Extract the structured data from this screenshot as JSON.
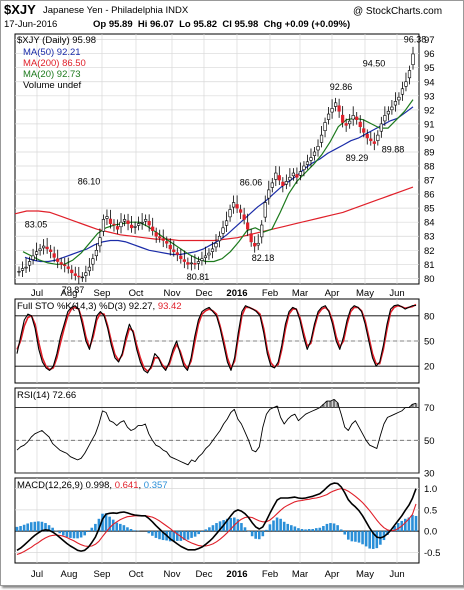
{
  "header": {
    "symbol": "$XJY",
    "title": "Japanese Yen - Philadelphia INDX",
    "watermark": "@ StockCharts.com",
    "date": "17-Jun-2016",
    "stats": "Op 95.89  Hi 96.07  Lo 95.82  Cl 95.98  Chg +0.09 (+0.09%)"
  },
  "colors": {
    "candle": "#000000",
    "ma50": "#1b2ca8",
    "ma200": "#e0202a",
    "ma20": "#1d7a1d",
    "stoK": "#000000",
    "stoD": "#e0202a",
    "rsi": "#000000",
    "macd": "#000000",
    "signal": "#e0202a",
    "hist": "#2a8fd8",
    "grid": "#d8d8d8"
  },
  "chart_data": [
    {
      "type": "candlestick",
      "legend": [
        "$XJY (Daily) 95.98",
        "MA(50) 92.21",
        "MA(200) 86.50",
        "MA(20) 92.73",
        "Volume undef"
      ],
      "ylim": [
        79.6,
        97.4
      ],
      "yticks": [
        80,
        81,
        82,
        83,
        84,
        85,
        86,
        87,
        88,
        89,
        90,
        91,
        92,
        93,
        94,
        95,
        96,
        97
      ],
      "xticks": [
        "Jul",
        "Aug",
        "Sep",
        "Oct",
        "Nov",
        "Dec",
        "2016",
        "Feb",
        "Mar",
        "Apr",
        "May",
        "Jun"
      ],
      "closes": [
        80.5,
        80.7,
        80.8,
        81.2,
        81.6,
        81.9,
        82.1,
        82.3,
        82.1,
        81.9,
        81.5,
        81.2,
        81.0,
        80.9,
        80.7,
        80.4,
        80.2,
        80.1,
        80.1,
        80.4,
        80.8,
        81.4,
        82.0,
        82.9,
        84.2,
        84.4,
        83.9,
        83.8,
        83.5,
        84.0,
        84.2,
        83.9,
        83.6,
        83.7,
        83.9,
        84.0,
        84.2,
        83.8,
        83.4,
        83.0,
        82.9,
        82.7,
        82.5,
        82.1,
        81.9,
        81.7,
        81.4,
        81.2,
        81.0,
        81.1,
        81.0,
        81.2,
        81.4,
        81.6,
        81.8,
        82.1,
        82.5,
        83.0,
        83.6,
        84.1,
        84.9,
        85.4,
        85.0,
        84.7,
        84.2,
        83.5,
        82.6,
        82.3,
        82.5,
        83.8,
        85.4,
        86.3,
        86.8,
        87.5,
        87.0,
        86.6,
        86.9,
        87.2,
        87.5,
        87.2,
        87.6,
        88.0,
        88.3,
        88.6,
        89.0,
        89.4,
        90.2,
        91.1,
        91.7,
        92.1,
        92.5,
        91.9,
        91.1,
        90.9,
        91.2,
        91.6,
        91.3,
        90.8,
        90.4,
        90.0,
        89.8,
        89.6,
        90.2,
        91.0,
        91.6,
        91.9,
        92.2,
        92.6,
        92.9,
        93.5,
        94.0,
        94.8,
        95.98
      ],
      "series": [
        {
          "name": "MA(50)",
          "values": [
            81.5,
            81.3,
            81.2,
            81.2,
            81.3,
            81.5,
            81.7,
            81.9,
            82.1,
            82.4,
            82.6,
            82.7,
            82.7,
            82.6,
            82.4,
            82.2,
            82.0,
            81.9,
            81.8,
            81.7,
            81.7,
            81.8,
            81.9,
            82.1,
            82.4,
            82.7,
            83.1,
            83.6,
            84.1,
            84.6,
            85.1,
            85.5,
            86.0,
            86.5,
            86.9,
            87.3,
            87.8,
            88.2,
            88.5,
            88.9,
            89.2,
            89.5,
            89.8,
            90.0,
            90.3,
            90.6,
            90.9,
            91.2,
            91.4,
            91.8,
            92.21
          ]
        },
        {
          "name": "MA(200)",
          "values": [
            84.6,
            84.8,
            84.8,
            84.7,
            84.4,
            84.1,
            83.8,
            83.5,
            83.3,
            83.1,
            83.0,
            82.9,
            82.8,
            82.8,
            82.7,
            82.7,
            82.7,
            82.7,
            82.8,
            82.9,
            83.1,
            83.3,
            83.5,
            83.7,
            83.9,
            84.1,
            84.3,
            84.5,
            84.7,
            85.0,
            85.3,
            85.6,
            85.9,
            86.2,
            86.5
          ]
        },
        {
          "name": "MA(20)",
          "values": [
            81.9,
            81.6,
            81.3,
            81.1,
            81.0,
            81.0,
            81.3,
            81.8,
            82.5,
            83.2,
            83.6,
            83.8,
            83.9,
            84.0,
            84.0,
            83.7,
            83.3,
            82.9,
            82.5,
            82.1,
            81.7,
            81.4,
            81.2,
            81.2,
            81.4,
            81.9,
            82.6,
            83.4,
            83.6,
            83.3,
            83.5,
            84.7,
            86.0,
            86.9,
            87.5,
            88.1,
            88.8,
            89.7,
            90.8,
            91.3,
            91.4,
            91.3,
            91.0,
            90.7,
            90.7,
            91.3,
            91.9,
            92.73
          ]
        }
      ],
      "annotations": [
        {
          "label": "83.05",
          "value": 83.05
        },
        {
          "label": "79.87",
          "value": 79.87
        },
        {
          "label": "86.10",
          "value": 86.1
        },
        {
          "label": "80.81",
          "value": 80.81
        },
        {
          "label": "86.06",
          "value": 86.06
        },
        {
          "label": "82.18",
          "value": 82.18
        },
        {
          "label": "92.86",
          "value": 92.86
        },
        {
          "label": "94.50",
          "value": 94.5
        },
        {
          "label": "89.29",
          "value": 89.29
        },
        {
          "label": "89.88",
          "value": 89.88
        },
        {
          "label": "96.38",
          "value": 96.38
        }
      ]
    },
    {
      "type": "line",
      "legend": [
        "Full STO %K(14,3) %D(3) 92.27, 93.42"
      ],
      "legend_parts": {
        "name": "Full STO %K(14,3) %D(3) ",
        "k": "92.27",
        "d": "93.42"
      },
      "ylim": [
        0,
        100
      ],
      "yticks": [
        20,
        50,
        80
      ],
      "series": [
        {
          "name": "%K",
          "values": [
            35,
            55,
            75,
            82,
            80,
            65,
            40,
            25,
            18,
            15,
            20,
            35,
            55,
            70,
            85,
            90,
            92,
            88,
            70,
            50,
            40,
            60,
            80,
            85,
            80,
            65,
            45,
            30,
            25,
            35,
            55,
            70,
            60,
            40,
            25,
            15,
            12,
            20,
            35,
            30,
            20,
            15,
            25,
            40,
            50,
            35,
            20,
            15,
            30,
            55,
            75,
            85,
            88,
            90,
            85,
            80,
            65,
            45,
            25,
            15,
            30,
            60,
            85,
            92,
            90,
            88,
            85,
            80,
            60,
            35,
            20,
            18,
            25,
            45,
            70,
            85,
            90,
            88,
            75,
            55,
            40,
            50,
            70,
            85,
            90,
            92,
            85,
            70,
            50,
            40,
            55,
            75,
            88,
            92,
            90,
            85,
            70,
            50,
            30,
            20,
            25,
            45,
            70,
            88,
            92,
            93,
            91,
            88,
            90,
            92,
            92.27
          ]
        },
        {
          "name": "%D",
          "values": [
            40,
            50,
            68,
            78,
            80,
            70,
            48,
            30,
            20,
            16,
            18,
            30,
            48,
            65,
            80,
            88,
            90,
            88,
            75,
            55,
            42,
            55,
            75,
            83,
            82,
            68,
            50,
            34,
            27,
            33,
            50,
            65,
            62,
            45,
            30,
            18,
            14,
            18,
            30,
            30,
            22,
            17,
            22,
            36,
            46,
            38,
            24,
            17,
            26,
            48,
            70,
            82,
            86,
            88,
            86,
            82,
            68,
            50,
            30,
            18,
            26,
            54,
            80,
            90,
            90,
            88,
            86,
            82,
            65,
            40,
            24,
            19,
            22,
            40,
            64,
            82,
            88,
            88,
            78,
            60,
            44,
            47,
            66,
            82,
            88,
            90,
            86,
            74,
            55,
            43,
            50,
            70,
            85,
            90,
            90,
            86,
            74,
            55,
            35,
            23,
            23,
            40,
            64,
            84,
            90,
            92,
            91,
            89,
            90,
            91,
            93.42
          ]
        }
      ]
    },
    {
      "type": "line",
      "legend": [
        "RSI(14) 72.66"
      ],
      "ylim": [
        30,
        82
      ],
      "yticks": [
        30,
        50,
        70
      ],
      "series": [
        {
          "name": "RSI(14)",
          "values": [
            44,
            46,
            47,
            49,
            52,
            54,
            55,
            56,
            54,
            52,
            48,
            46,
            44,
            43,
            42,
            40,
            39,
            38,
            39,
            42,
            46,
            50,
            54,
            60,
            68,
            67,
            62,
            61,
            59,
            61,
            62,
            58,
            56,
            57,
            59,
            59,
            60,
            54,
            50,
            47,
            46,
            44,
            43,
            40,
            39,
            38,
            37,
            36,
            35,
            38,
            37,
            40,
            42,
            45,
            47,
            50,
            53,
            56,
            60,
            63,
            67,
            69,
            63,
            60,
            55,
            50,
            44,
            43,
            46,
            58,
            66,
            69,
            70,
            71,
            64,
            60,
            63,
            65,
            66,
            62,
            64,
            66,
            67,
            68,
            69,
            70,
            72,
            74,
            74,
            75,
            73,
            66,
            58,
            56,
            60,
            62,
            58,
            54,
            50,
            47,
            46,
            45,
            53,
            60,
            64,
            65,
            66,
            67,
            68,
            70,
            70,
            72,
            72.66
          ]
        }
      ]
    },
    {
      "type": "line",
      "legend": [
        "MACD(12,26,9) 0.998, 0.641, 0.357"
      ],
      "legend_parts": {
        "name": "MACD(12,26,9) ",
        "macd": "0.998",
        "signal": "0.641",
        "hist": "0.357"
      },
      "ylim": [
        -0.75,
        1.25
      ],
      "yticks": [
        -0.5,
        0.0,
        0.5,
        1.0
      ],
      "series": [
        {
          "name": "MACD",
          "values": [
            -0.45,
            -0.4,
            -0.33,
            -0.25,
            -0.17,
            -0.1,
            -0.04,
            0.01,
            0.03,
            0.02,
            -0.02,
            -0.08,
            -0.15,
            -0.22,
            -0.29,
            -0.35,
            -0.4,
            -0.45,
            -0.47,
            -0.45,
            -0.38,
            -0.27,
            -0.14,
            0.05,
            0.28,
            0.4,
            0.42,
            0.43,
            0.42,
            0.44,
            0.45,
            0.43,
            0.4,
            0.38,
            0.37,
            0.36,
            0.36,
            0.3,
            0.22,
            0.13,
            0.05,
            -0.03,
            -0.1,
            -0.18,
            -0.24,
            -0.3,
            -0.36,
            -0.4,
            -0.44,
            -0.44,
            -0.44,
            -0.41,
            -0.37,
            -0.31,
            -0.24,
            -0.16,
            -0.06,
            0.04,
            0.14,
            0.25,
            0.36,
            0.46,
            0.5,
            0.47,
            0.41,
            0.32,
            0.2,
            0.1,
            0.05,
            0.1,
            0.25,
            0.42,
            0.58,
            0.73,
            0.78,
            0.78,
            0.78,
            0.79,
            0.8,
            0.78,
            0.77,
            0.78,
            0.8,
            0.82,
            0.85,
            0.88,
            0.95,
            1.03,
            1.1,
            1.13,
            1.12,
            1.04,
            0.9,
            0.74,
            0.64,
            0.57,
            0.48,
            0.36,
            0.22,
            0.07,
            -0.05,
            -0.14,
            -0.16,
            -0.13,
            -0.06,
            0.03,
            0.14,
            0.25,
            0.36,
            0.49,
            0.61,
            0.77,
            0.998
          ]
        },
        {
          "name": "Signal",
          "values": [
            -0.55,
            -0.52,
            -0.48,
            -0.43,
            -0.38,
            -0.32,
            -0.27,
            -0.21,
            -0.16,
            -0.12,
            -0.1,
            -0.09,
            -0.1,
            -0.12,
            -0.15,
            -0.19,
            -0.23,
            -0.28,
            -0.32,
            -0.35,
            -0.36,
            -0.35,
            -0.31,
            -0.24,
            -0.13,
            -0.02,
            0.08,
            0.16,
            0.22,
            0.27,
            0.31,
            0.34,
            0.35,
            0.36,
            0.36,
            0.36,
            0.36,
            0.35,
            0.33,
            0.29,
            0.24,
            0.18,
            0.12,
            0.06,
            -0.01,
            -0.07,
            -0.13,
            -0.19,
            -0.24,
            -0.28,
            -0.31,
            -0.34,
            -0.35,
            -0.35,
            -0.33,
            -0.3,
            -0.25,
            -0.19,
            -0.12,
            -0.04,
            0.05,
            0.14,
            0.22,
            0.28,
            0.32,
            0.33,
            0.32,
            0.28,
            0.24,
            0.22,
            0.22,
            0.26,
            0.33,
            0.41,
            0.49,
            0.56,
            0.61,
            0.65,
            0.69,
            0.71,
            0.72,
            0.74,
            0.75,
            0.77,
            0.78,
            0.8,
            0.83,
            0.86,
            0.91,
            0.95,
            0.98,
            1.0,
            0.98,
            0.94,
            0.88,
            0.82,
            0.75,
            0.67,
            0.58,
            0.48,
            0.37,
            0.26,
            0.16,
            0.08,
            0.03,
            0.01,
            0.02,
            0.06,
            0.12,
            0.2,
            0.29,
            0.39,
            0.641
          ]
        }
      ]
    }
  ]
}
